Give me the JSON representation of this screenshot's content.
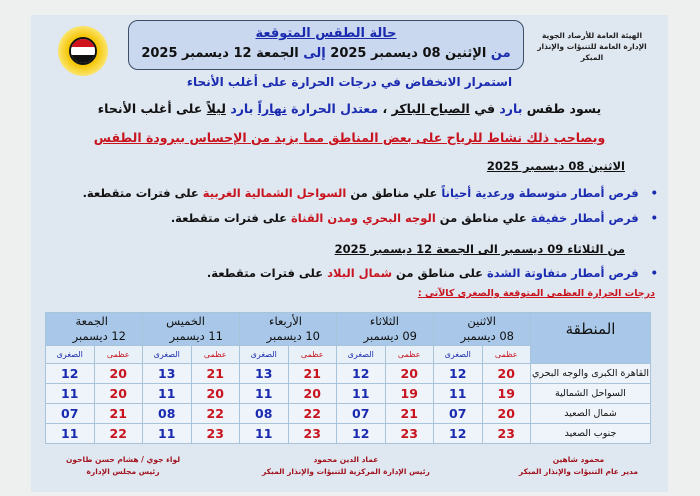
{
  "org": {
    "line1": "الهيئة العامة للأرصاد الجوية",
    "line2": "الإدارة العامة للتنبؤات والإنذار المبكر"
  },
  "header": {
    "title": "حالة الطقس المتوقعة",
    "from": "من",
    "from_date": "الإثنين 08 ديسمبر 2025",
    "to": "إلى",
    "to_date": "الجمعة 12 ديسمبر 2025"
  },
  "summary": {
    "line1": "استمرار الانخفاض في درجات الحرارة على أغلب الأنحاء",
    "line2": [
      {
        "t": "يسود طقس ",
        "c": ""
      },
      {
        "t": "بارد",
        "c": "blue"
      },
      {
        "t": " في ",
        "c": ""
      },
      {
        "t": "الصباح الباكر",
        "c": "u"
      },
      {
        "t": " ، ",
        "c": ""
      },
      {
        "t": "معتدل الحرارة",
        "c": "blue"
      },
      {
        "t": " ",
        "c": ""
      },
      {
        "t": "نهاراً",
        "c": "blue u"
      },
      {
        "t": " بارد ",
        "c": "blue"
      },
      {
        "t": "ليلاً",
        "c": "u"
      },
      {
        "t": " على أغلب الأنحاء",
        "c": ""
      }
    ],
    "line3": "ويصاحب ذلك نشاط للرياح على بعض المناطق مما يزيد من الإحساس ببرودة الطقس"
  },
  "sections": [
    {
      "heading": "الاثنين 08 ديسمبر 2025",
      "bullets": [
        [
          {
            "t": "فرص أمطار متوسطة ورعدية أحياناً",
            "c": "blue"
          },
          {
            "t": " علي مناطق من ",
            "c": ""
          },
          {
            "t": "السواحل الشمالية الغربية",
            "c": "red"
          },
          {
            "t": " على فترات متقطعة.",
            "c": ""
          }
        ],
        [
          {
            "t": "فرص أمطار خفيفة",
            "c": "blue"
          },
          {
            "t": " علي مناطق من ",
            "c": ""
          },
          {
            "t": "الوجه البحري ومدن القناة",
            "c": "red"
          },
          {
            "t": " على فترات متقطعة.",
            "c": ""
          }
        ]
      ]
    },
    {
      "heading": "من الثلاثاء 09 ديسمبر  الى الجمعة 12 ديسمبر 2025",
      "bullets": [
        [
          {
            "t": "فرص أمطار متفاوتة الشدة",
            "c": "blue"
          },
          {
            "t": " على مناطق من ",
            "c": ""
          },
          {
            "t": "شمال البلاد",
            "c": "red"
          },
          {
            "t": " على فترات متقطعة.",
            "c": ""
          }
        ]
      ]
    }
  ],
  "table": {
    "label": "درجات الحرارة العظمى المتوقعة والصغرى كالآتي :",
    "region_header": "المنطقة",
    "max_label": "عظمى",
    "min_label": "الصغرى",
    "days": [
      {
        "name": "الاثنين",
        "date": "08  ديسمبر"
      },
      {
        "name": "الثلاثاء",
        "date": "09  ديسمبر"
      },
      {
        "name": "الأربعاء",
        "date": "10  ديسمبر"
      },
      {
        "name": "الخميس",
        "date": "11  ديسمبر"
      },
      {
        "name": "الجمعة",
        "date": "12  ديسمبر"
      }
    ],
    "rows": [
      {
        "region": "القاهرة الكبرى والوجه البحري",
        "values": [
          [
            "20",
            "12"
          ],
          [
            "20",
            "12"
          ],
          [
            "21",
            "13"
          ],
          [
            "21",
            "13"
          ],
          [
            "20",
            "12"
          ]
        ]
      },
      {
        "region": "السواحل الشمالية",
        "values": [
          [
            "19",
            "11"
          ],
          [
            "19",
            "11"
          ],
          [
            "20",
            "11"
          ],
          [
            "20",
            "11"
          ],
          [
            "20",
            "11"
          ]
        ]
      },
      {
        "region": "شمال الصعيد",
        "values": [
          [
            "20",
            "07"
          ],
          [
            "21",
            "07"
          ],
          [
            "22",
            "08"
          ],
          [
            "22",
            "08"
          ],
          [
            "21",
            "07"
          ]
        ]
      },
      {
        "region": "جنوب الصعيد",
        "values": [
          [
            "23",
            "12"
          ],
          [
            "23",
            "12"
          ],
          [
            "23",
            "11"
          ],
          [
            "23",
            "11"
          ],
          [
            "22",
            "11"
          ]
        ]
      }
    ]
  },
  "signatures": [
    {
      "name": "محمود شاهين",
      "title": "مدير عام التنبؤات والإنذار المبكر"
    },
    {
      "name": "عماد الدين محمود",
      "title": "رئيس الإدارة المركزية للتنبؤات والإنذار المبكر"
    },
    {
      "name": "لواء جوي / هشام حسن طاحون",
      "title": "رئيس مجلس الإدارة"
    }
  ],
  "colors": {
    "blue": "#1a2bb0",
    "red": "#c8141e",
    "header_bg": "#c9d8ee",
    "table_head": "#a9c7e8"
  }
}
